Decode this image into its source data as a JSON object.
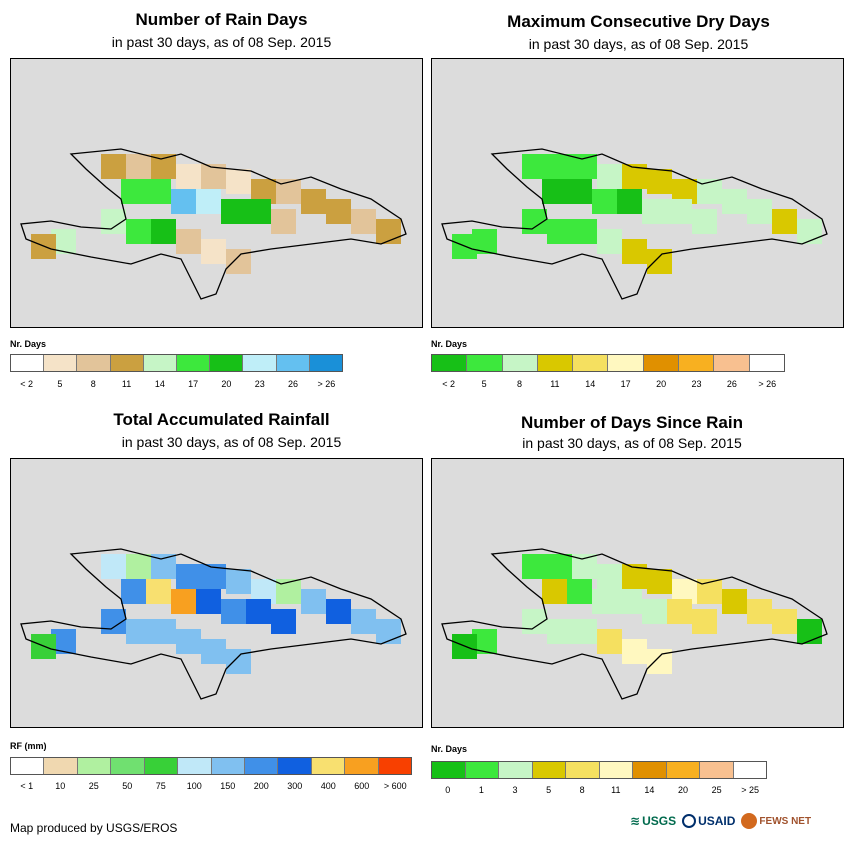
{
  "panels": [
    {
      "title": "Number of Rain Days",
      "subtitle": "in past 30 days, as of 08 Sep. 2015",
      "legend_title": "Nr. Days",
      "legend_colors": [
        "#ffffff",
        "#f5e3c8",
        "#e2c49a",
        "#cba040",
        "#c6f5c6",
        "#3de83d",
        "#17c017",
        "#bfeef8",
        "#64c0f0",
        "#1a90d8"
      ],
      "legend_labels": [
        "< 2",
        "5",
        "8",
        "11",
        "14",
        "17",
        "20",
        "23",
        "26",
        "> 26"
      ]
    },
    {
      "title": "Maximum Consecutive Dry Days",
      "subtitle": "in past 30 days, as of 08 Sep. 2015",
      "legend_title": "Nr. Days",
      "legend_colors": [
        "#17c017",
        "#3de83d",
        "#c6f5c6",
        "#d9c800",
        "#f5e060",
        "#fff8c0",
        "#e09000",
        "#f8b020",
        "#f8c090",
        "#ffffff"
      ],
      "legend_labels": [
        "< 2",
        "5",
        "8",
        "11",
        "14",
        "17",
        "20",
        "23",
        "26",
        "> 26"
      ]
    },
    {
      "title": "Total Accumulated Rainfall",
      "subtitle": "in past 30 days, as of 08 Sep. 2015",
      "legend_title": "RF (mm)",
      "legend_colors": [
        "#ffffff",
        "#f0d8b0",
        "#b0f0a0",
        "#70e070",
        "#38d038",
        "#c0e8f8",
        "#80c0f0",
        "#4090e8",
        "#1060e0",
        "#f8e070",
        "#f8a020",
        "#f84000"
      ],
      "legend_labels": [
        "< 1",
        "10",
        "25",
        "50",
        "75",
        "100",
        "150",
        "200",
        "300",
        "400",
        "600",
        "> 600"
      ]
    },
    {
      "title": "Number of Days Since Rain",
      "subtitle": "in past 30 days, as of 08 Sep. 2015",
      "legend_title": "Nr. Days",
      "legend_colors": [
        "#17c017",
        "#3de83d",
        "#c6f5c6",
        "#d9c800",
        "#f5e060",
        "#fff8c0",
        "#e09000",
        "#f8b020",
        "#f8c090",
        "#ffffff"
      ],
      "legend_labels": [
        "0",
        "1",
        "3",
        "5",
        "8",
        "11",
        "14",
        "20",
        "25",
        "> 25"
      ]
    }
  ],
  "footer": {
    "credit": "Map produced by USGS/EROS",
    "logo_usgs": "USGS",
    "logo_usaid": "USAID",
    "logo_fewsnet": "FEWS NET"
  }
}
